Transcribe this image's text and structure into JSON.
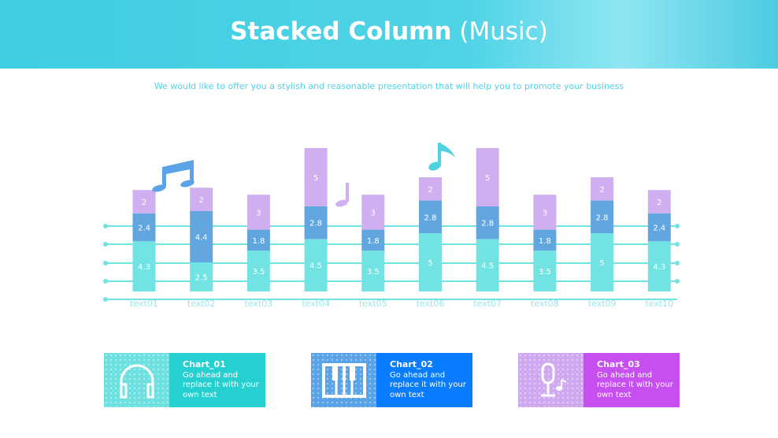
{
  "header": {
    "title_bold": "Stacked Column",
    "title_rest": "(Music)"
  },
  "subtitle": "We would like to offer you a stylish and reasonable presentation that will help you to promote your business",
  "chart_data": {
    "type": "bar",
    "stacked": true,
    "categories": [
      "text01",
      "text02",
      "text03",
      "text04",
      "text05",
      "text06",
      "text07",
      "text08",
      "text09",
      "text10"
    ],
    "series": [
      {
        "values": [
          4.3,
          2.5,
          3.5,
          4.5,
          3.5,
          5,
          4.5,
          3.5,
          5,
          4.3
        ],
        "color": "#72e3e3"
      },
      {
        "values": [
          2.4,
          4.4,
          1.8,
          2.8,
          1.8,
          2.8,
          2.8,
          1.8,
          2.8,
          2.4
        ],
        "color": "#62a6e0"
      },
      {
        "values": [
          2,
          2,
          3,
          5,
          3,
          2,
          5,
          3,
          2,
          2
        ],
        "color": "#cfaff0"
      }
    ],
    "data_labels": true,
    "grid": "staff lines",
    "axis_color": "#72e3e3"
  },
  "cards": [
    {
      "title": "Chart_01",
      "text": "Go ahead and replace it with your own text",
      "icon": "headphones-icon",
      "color": "#27d0d0",
      "icon_bg": "#6fe0e0"
    },
    {
      "title": "Chart_02",
      "text": "Go ahead and replace it with your own text",
      "icon": "piano-icon",
      "color": "#0a7cff",
      "icon_bg": "#5aa3e6"
    },
    {
      "title": "Chart_03",
      "text": "Go ahead and replace it with your own text",
      "icon": "microphone-icon",
      "color": "#c74ff0",
      "icon_bg": "#cfaaf0"
    }
  ]
}
